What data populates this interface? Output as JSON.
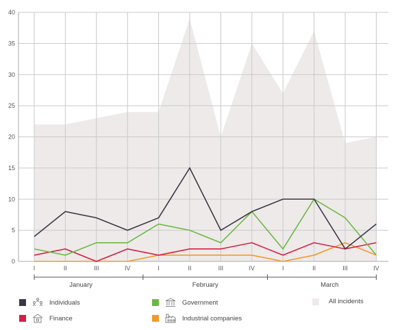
{
  "chart_data": {
    "type": "line",
    "categories": [
      "I",
      "II",
      "III",
      "IV",
      "I",
      "II",
      "III",
      "IV",
      "I",
      "II",
      "III",
      "IV"
    ],
    "months": [
      {
        "label": "January",
        "span": [
          0,
          3
        ]
      },
      {
        "label": "February",
        "span": [
          4,
          7
        ]
      },
      {
        "label": "March",
        "span": [
          8,
          11
        ]
      }
    ],
    "ylim": [
      0,
      40
    ],
    "yticks": [
      0,
      5,
      10,
      15,
      20,
      25,
      30,
      35,
      40
    ],
    "grid": true,
    "series": [
      {
        "name": "Individuals",
        "color": "#3b3744",
        "style": "line",
        "icon": "people-icon",
        "values": [
          4,
          8,
          7,
          5,
          7,
          15,
          5,
          8,
          10,
          10,
          2,
          6
        ]
      },
      {
        "name": "Government",
        "color": "#6cb842",
        "style": "line",
        "icon": "government-building-icon",
        "values": [
          2,
          1,
          3,
          3,
          6,
          5,
          3,
          8,
          2,
          10,
          7,
          1
        ]
      },
      {
        "name": "All incidents",
        "color": "#eeeaea",
        "style": "area",
        "icon": "",
        "values": [
          22,
          22,
          23,
          24,
          24,
          39,
          20,
          35,
          27,
          37,
          19,
          20
        ]
      },
      {
        "name": "Finance",
        "color": "#d51f3f",
        "style": "line",
        "icon": "bank-icon",
        "values": [
          1,
          2,
          0,
          2,
          1,
          2,
          2,
          3,
          1,
          3,
          2,
          3
        ]
      },
      {
        "name": "Industrial companies",
        "color": "#f39a2a",
        "style": "line",
        "icon": "factory-icon",
        "values": [
          0,
          0,
          0,
          0,
          1,
          1,
          1,
          1,
          0,
          1,
          3,
          1
        ]
      }
    ],
    "legend_position": "bottom"
  }
}
